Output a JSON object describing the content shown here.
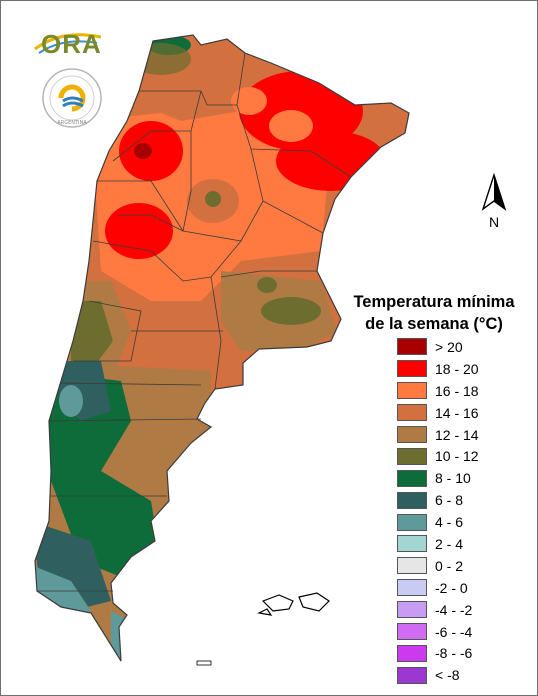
{
  "map": {
    "title_line1": "Temperatura mínima",
    "title_line2": "de la semana (°C)",
    "north_label": "N",
    "ora_logo_text": "ORA",
    "smn_logo_text": "ARGENTINA"
  },
  "legend": [
    {
      "label": "> 20",
      "color": "#a80000"
    },
    {
      "label": "18 - 20",
      "color": "#ff0000"
    },
    {
      "label": "16 - 18",
      "color": "#ff7a40"
    },
    {
      "label": "14 - 16",
      "color": "#d2703f"
    },
    {
      "label": "12 - 14",
      "color": "#b07a45"
    },
    {
      "label": "10 - 12",
      "color": "#6e6d30"
    },
    {
      "label": "8 - 10",
      "color": "#0e6b3a"
    },
    {
      "label": "6 - 8",
      "color": "#2f5f5f"
    },
    {
      "label": "4 - 6",
      "color": "#5f9a9a"
    },
    {
      "label": "2 - 4",
      "color": "#a3d6d2"
    },
    {
      "label": "0 - 2",
      "color": "#e6e6e6"
    },
    {
      "label": "-2 - 0",
      "color": "#c9cbf5"
    },
    {
      "label": "-4 - -2",
      "color": "#c79cf2"
    },
    {
      "label": "-6 - -4",
      "color": "#d06cf2"
    },
    {
      "label": "-8 - -6",
      "color": "#cc3af0"
    },
    {
      "label": "< -8",
      "color": "#9b38d0"
    }
  ]
}
